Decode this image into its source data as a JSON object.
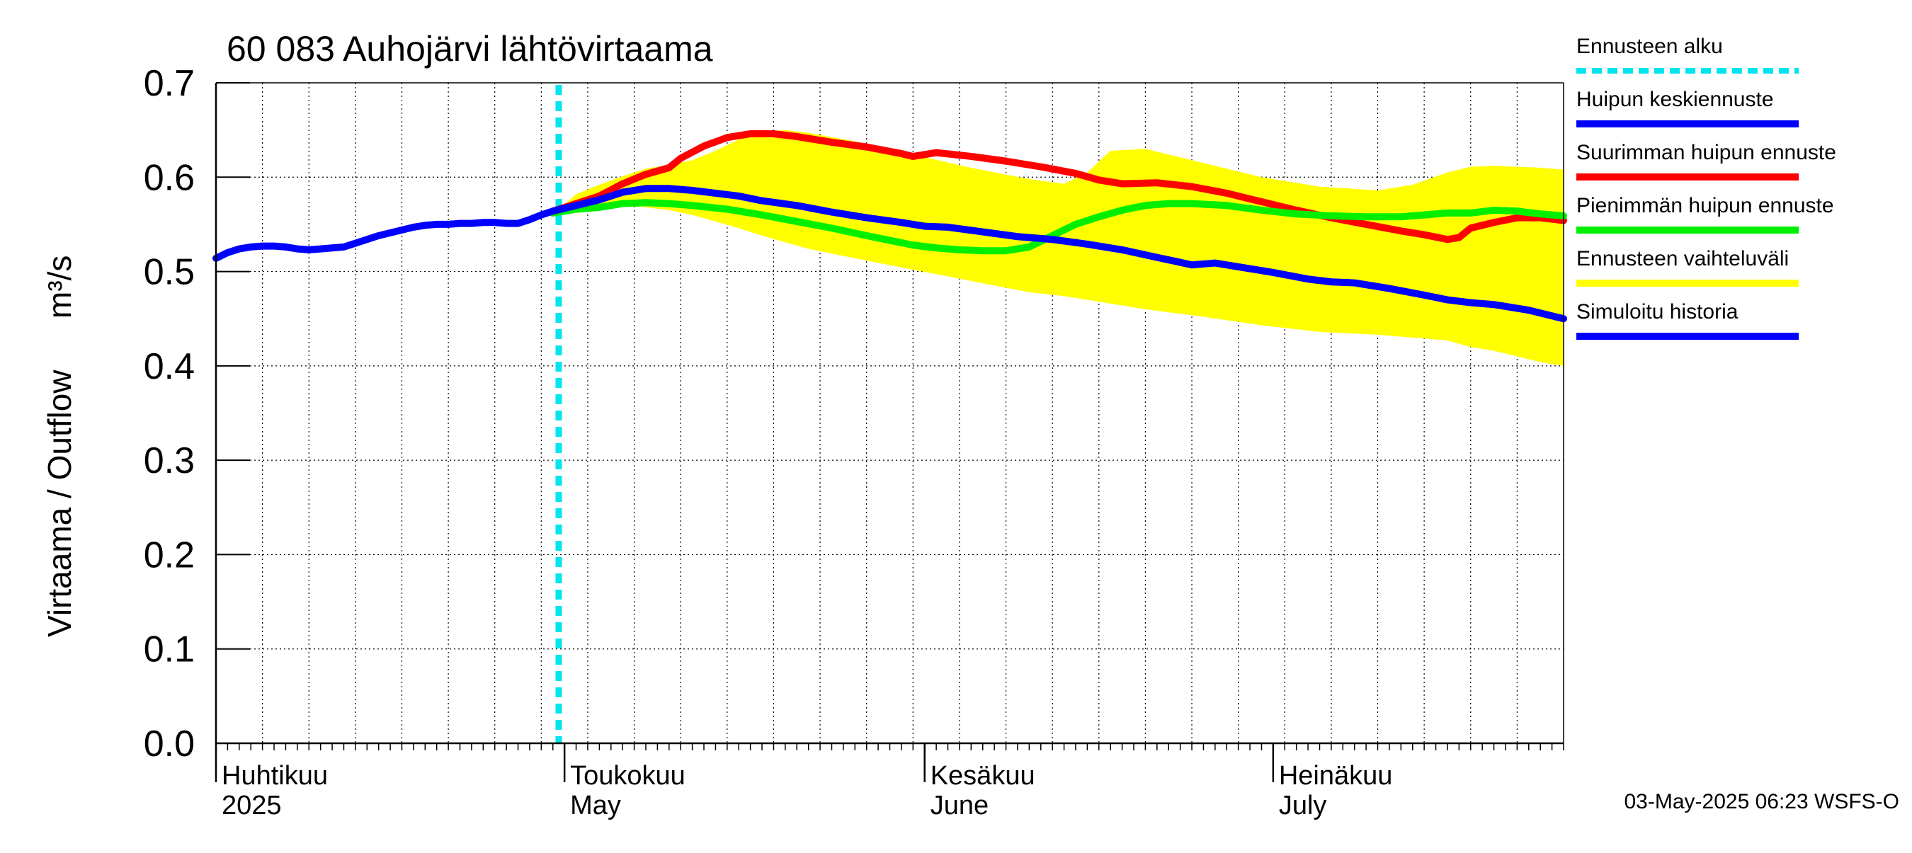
{
  "chart_data": {
    "type": "line",
    "title": "60 083 Auhojärvi lähtövirtaama",
    "ylabel_fi": "Virtaama / Outflow",
    "ylabel_unit": "m³/s",
    "ylim": [
      0.0,
      0.7
    ],
    "yticks": [
      "0.0",
      "0.1",
      "0.2",
      "0.3",
      "0.4",
      "0.5",
      "0.6",
      "0.7"
    ],
    "x_range_days": [
      0,
      116
    ],
    "x_start_date": "2025-04-01",
    "months": [
      {
        "fi": "Huhtikuu",
        "en": "2025",
        "day": 0
      },
      {
        "fi": "Toukokuu",
        "en": "May",
        "day": 30
      },
      {
        "fi": "Kesäkuu",
        "en": "June",
        "day": 61
      },
      {
        "fi": "Heinäkuu",
        "en": "July",
        "day": 91
      }
    ],
    "forecast_start_day": 29.5,
    "series": [
      {
        "key": "band",
        "name": "Ennusteen vaihteluväli",
        "color": "#ffff00",
        "x": [
          29,
          31,
          33,
          35,
          37,
          39,
          41,
          43,
          45,
          47,
          49,
          51,
          55,
          60,
          65,
          70,
          73,
          75,
          77,
          80,
          85,
          90,
          95,
          100,
          103,
          106,
          108,
          110,
          112,
          114,
          116
        ],
        "upper": [
          0.56,
          0.582,
          0.592,
          0.601,
          0.609,
          0.613,
          0.618,
          0.628,
          0.64,
          0.648,
          0.65,
          0.647,
          0.638,
          0.624,
          0.61,
          0.598,
          0.593,
          0.605,
          0.628,
          0.63,
          0.615,
          0.6,
          0.59,
          0.586,
          0.592,
          0.605,
          0.611,
          0.612,
          0.611,
          0.61,
          0.608
        ],
        "lower": [
          0.56,
          0.565,
          0.568,
          0.57,
          0.568,
          0.565,
          0.56,
          0.553,
          0.546,
          0.538,
          0.531,
          0.524,
          0.514,
          0.502,
          0.49,
          0.478,
          0.474,
          0.47,
          0.466,
          0.46,
          0.452,
          0.443,
          0.436,
          0.433,
          0.43,
          0.427,
          0.42,
          0.416,
          0.41,
          0.404,
          0.4
        ]
      },
      {
        "key": "hist",
        "name": "Simuloitu historia",
        "color": "#0000ff",
        "x": [
          0,
          1,
          2,
          3,
          4,
          5,
          6,
          7,
          8,
          9,
          10,
          11,
          12,
          13,
          14,
          15,
          16,
          17,
          18,
          19,
          20,
          21,
          22,
          23,
          24,
          25,
          26,
          27,
          28,
          29
        ],
        "values": [
          0.514,
          0.52,
          0.524,
          0.526,
          0.527,
          0.527,
          0.526,
          0.524,
          0.523,
          0.524,
          0.525,
          0.526,
          0.53,
          0.534,
          0.538,
          0.541,
          0.544,
          0.547,
          0.549,
          0.55,
          0.55,
          0.551,
          0.551,
          0.552,
          0.552,
          0.551,
          0.551,
          0.555,
          0.56,
          0.564
        ]
      },
      {
        "key": "mean",
        "name": "Huipun keskiennuste",
        "color": "#0000ff",
        "x": [
          29,
          31,
          33,
          35,
          37,
          39,
          41,
          43,
          45,
          47,
          50,
          53,
          56,
          59,
          61,
          63,
          66,
          69,
          72,
          75,
          78,
          81,
          84,
          86,
          88,
          91,
          94,
          96,
          98,
          101,
          104,
          106,
          108,
          110,
          113,
          116
        ],
        "values": [
          0.564,
          0.57,
          0.576,
          0.584,
          0.588,
          0.588,
          0.586,
          0.583,
          0.58,
          0.575,
          0.57,
          0.563,
          0.557,
          0.552,
          0.548,
          0.547,
          0.542,
          0.537,
          0.534,
          0.529,
          0.523,
          0.515,
          0.507,
          0.509,
          0.505,
          0.499,
          0.492,
          0.489,
          0.488,
          0.482,
          0.475,
          0.47,
          0.467,
          0.465,
          0.459,
          0.45
        ]
      },
      {
        "key": "max",
        "name": "Suurimman huipun ennuste",
        "color": "#ff0000",
        "x": [
          29,
          31,
          33,
          35,
          37,
          39,
          40,
          42,
          44,
          46,
          48,
          50,
          53,
          56,
          59,
          60,
          62,
          65,
          68,
          71,
          74,
          76,
          78,
          81,
          84,
          87,
          90,
          93,
          96,
          99,
          102,
          104,
          106,
          107,
          108,
          110,
          112,
          114,
          116
        ],
        "values": [
          0.564,
          0.572,
          0.58,
          0.593,
          0.603,
          0.61,
          0.62,
          0.633,
          0.642,
          0.646,
          0.646,
          0.643,
          0.637,
          0.632,
          0.625,
          0.622,
          0.626,
          0.622,
          0.617,
          0.611,
          0.604,
          0.597,
          0.593,
          0.594,
          0.59,
          0.583,
          0.574,
          0.565,
          0.557,
          0.55,
          0.543,
          0.539,
          0.534,
          0.536,
          0.546,
          0.552,
          0.557,
          0.557,
          0.554
        ]
      },
      {
        "key": "min",
        "name": "Pienimmän huipun ennuste",
        "color": "#00ee00",
        "x": [
          29,
          31,
          33,
          35,
          37,
          39,
          41,
          44,
          47,
          50,
          53,
          56,
          58,
          60,
          62,
          64,
          66,
          68,
          70,
          72,
          74,
          76,
          78,
          80,
          82,
          84,
          87,
          90,
          93,
          96,
          99,
          102,
          104,
          106,
          108,
          110,
          112,
          114,
          116
        ],
        "values": [
          0.562,
          0.566,
          0.568,
          0.572,
          0.573,
          0.572,
          0.57,
          0.566,
          0.56,
          0.553,
          0.546,
          0.538,
          0.533,
          0.528,
          0.525,
          0.523,
          0.522,
          0.522,
          0.526,
          0.538,
          0.55,
          0.558,
          0.565,
          0.57,
          0.572,
          0.572,
          0.57,
          0.565,
          0.561,
          0.559,
          0.558,
          0.558,
          0.56,
          0.562,
          0.562,
          0.565,
          0.564,
          0.561,
          0.559
        ]
      }
    ],
    "legend": [
      {
        "label": "Ennusteen alku",
        "color": "#00e5ee",
        "style": "dashed"
      },
      {
        "label": "Huipun keskiennuste",
        "color": "#0000ff",
        "style": "solid"
      },
      {
        "label": "Suurimman huipun ennuste",
        "color": "#ff0000",
        "style": "solid"
      },
      {
        "label": "Pienimmän huipun ennuste",
        "color": "#00ee00",
        "style": "solid"
      },
      {
        "label": "Ennusteen vaihteluväli",
        "color": "#ffff00",
        "style": "solid"
      },
      {
        "label": "Simuloitu historia",
        "color": "#0000ff",
        "style": "solid"
      }
    ],
    "footer": "03-May-2025 06:23 WSFS-O"
  }
}
